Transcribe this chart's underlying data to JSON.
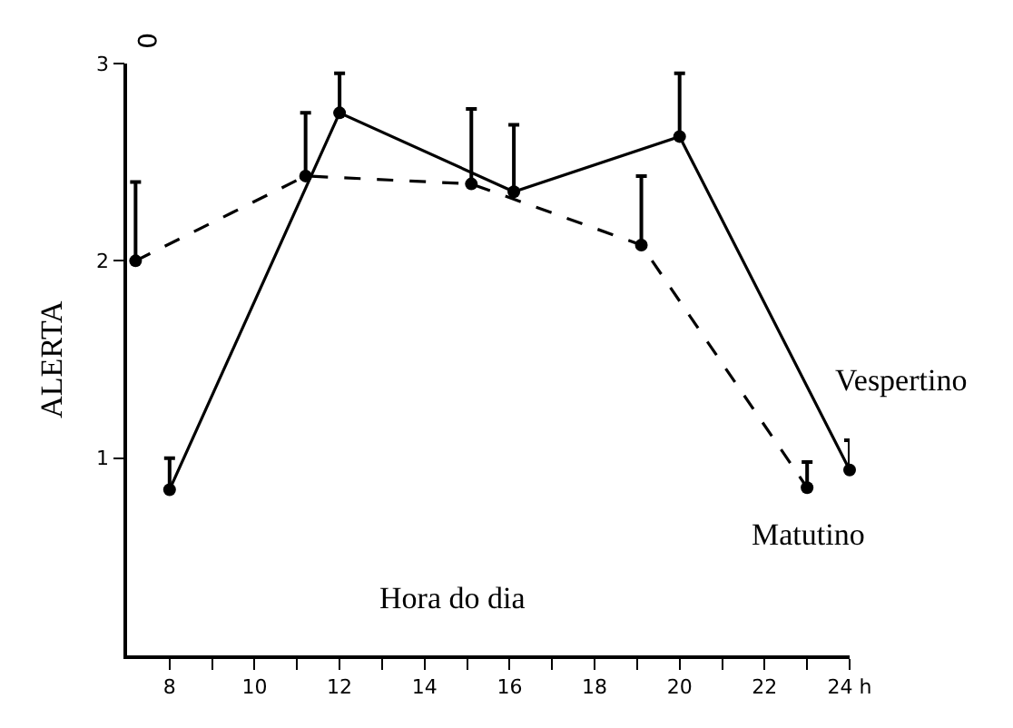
{
  "chart_data": {
    "type": "line",
    "xlabel": "Hora do dia",
    "ylabel": "ALERTA",
    "annotations": [
      "0"
    ],
    "xlim": [
      7,
      24
    ],
    "ylim": [
      0,
      3
    ],
    "xticks": [
      8,
      {
        "value": 9,
        "label": null
      },
      10,
      {
        "value": 11,
        "label": null
      },
      12,
      {
        "value": 13,
        "label": null
      },
      14,
      {
        "value": 15,
        "label": null
      },
      16,
      {
        "value": 17,
        "label": null
      },
      18,
      {
        "value": 19,
        "label": null
      },
      20,
      {
        "value": 21,
        "label": null
      },
      22,
      {
        "value": 23,
        "label": null
      },
      {
        "value": 24,
        "label": "24 h"
      }
    ],
    "yticks": [
      1,
      2,
      3
    ],
    "grid": false,
    "legend": false,
    "marker": "circle",
    "series": [
      {
        "name": "Vespertino",
        "color": "#000000",
        "line_style": "solid",
        "x": [
          8,
          12,
          16.1,
          20,
          24
        ],
        "values": [
          0.84,
          2.75,
          2.35,
          2.63,
          0.94
        ],
        "errors": [
          [
            0.84,
            1.0
          ],
          [
            2.75,
            2.95
          ],
          [
            2.35,
            2.69
          ],
          [
            2.63,
            2.95
          ],
          [
            0.94,
            1.09
          ]
        ]
      },
      {
        "name": "Matutino",
        "color": "#000000",
        "line_style": "dashed",
        "x": [
          7.2,
          11.2,
          15.1,
          19.1,
          23
        ],
        "values": [
          2.0,
          2.43,
          2.39,
          2.08,
          0.85
        ],
        "errors": [
          [
            2.0,
            2.4
          ],
          [
            2.43,
            2.75
          ],
          [
            2.39,
            2.77
          ],
          [
            2.08,
            2.43
          ],
          [
            0.85,
            0.98
          ]
        ]
      }
    ]
  }
}
